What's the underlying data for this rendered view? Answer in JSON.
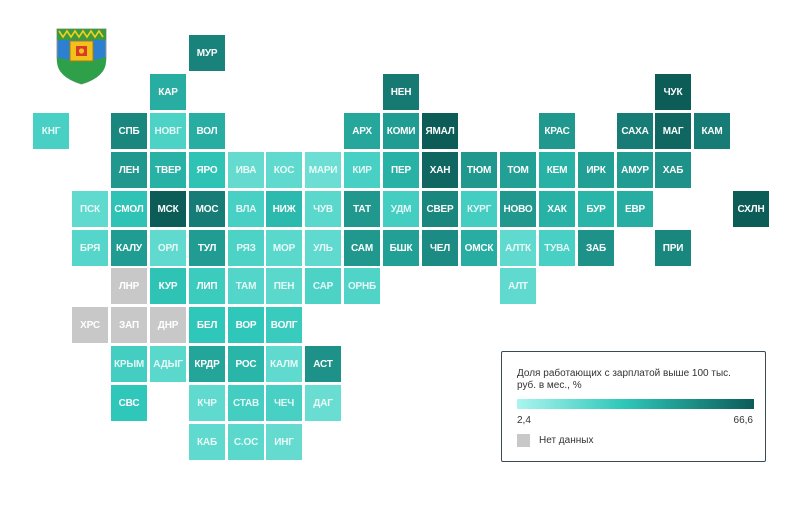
{
  "legend": {
    "title": "Доля работающих с зарплатой выше 100 тыс. руб. в мес., %",
    "min_label": "2,4",
    "max_label": "66,6",
    "no_data_label": "Нет данных",
    "min_value": 2.4,
    "max_value": 66.6
  },
  "colors": {
    "scale_low": "#aaf5ee",
    "scale_mid": "#2fc7b9",
    "scale_high": "#0c5c58",
    "no_data": "#c8c8c8",
    "legend_border": "#3a4a57"
  },
  "emblem": {
    "icon": "coat-of-arms-icon"
  },
  "regions": [
    {
      "label": "МУР",
      "col": 5,
      "row": 0,
      "level": 0.82
    },
    {
      "label": "КАР",
      "col": 4,
      "row": 1,
      "level": 0.62
    },
    {
      "label": "НЕН",
      "col": 10,
      "row": 1,
      "level": 0.86
    },
    {
      "label": "ЧУК",
      "col": 17,
      "row": 1,
      "level": 1.0
    },
    {
      "label": "КНГ",
      "col": 1,
      "row": 2,
      "level": 0.4
    },
    {
      "label": "СПБ",
      "col": 3,
      "row": 2,
      "level": 0.8
    },
    {
      "label": "НОВГ",
      "col": 4,
      "row": 2,
      "level": 0.38
    },
    {
      "label": "ВОЛ",
      "col": 5,
      "row": 2,
      "level": 0.62
    },
    {
      "label": "АРХ",
      "col": 9,
      "row": 2,
      "level": 0.65
    },
    {
      "label": "КОМИ",
      "col": 10,
      "row": 2,
      "level": 0.7
    },
    {
      "label": "ЯМАЛ",
      "col": 11,
      "row": 2,
      "level": 1.0
    },
    {
      "label": "КРАС",
      "col": 14,
      "row": 2,
      "level": 0.72
    },
    {
      "label": "САХА",
      "col": 16,
      "row": 2,
      "level": 0.85
    },
    {
      "label": "МАГ",
      "col": 17,
      "row": 2,
      "level": 0.95
    },
    {
      "label": "КАМ",
      "col": 18,
      "row": 2,
      "level": 0.85
    },
    {
      "label": "ЛЕН",
      "col": 3,
      "row": 3,
      "level": 0.72
    },
    {
      "label": "ТВЕР",
      "col": 4,
      "row": 3,
      "level": 0.6
    },
    {
      "label": "ЯРО",
      "col": 5,
      "row": 3,
      "level": 0.52
    },
    {
      "label": "ИВА",
      "col": 6,
      "row": 3,
      "level": 0.28
    },
    {
      "label": "КОС",
      "col": 7,
      "row": 3,
      "level": 0.3
    },
    {
      "label": "МАРИ",
      "col": 8,
      "row": 3,
      "level": 0.25
    },
    {
      "label": "КИР",
      "col": 9,
      "row": 3,
      "level": 0.4
    },
    {
      "label": "ПЕР",
      "col": 10,
      "row": 3,
      "level": 0.6
    },
    {
      "label": "ХАН",
      "col": 11,
      "row": 3,
      "level": 0.95
    },
    {
      "label": "ТЮМ",
      "col": 12,
      "row": 3,
      "level": 0.72
    },
    {
      "label": "ТОМ",
      "col": 13,
      "row": 3,
      "level": 0.68
    },
    {
      "label": "КЕМ",
      "col": 14,
      "row": 3,
      "level": 0.6
    },
    {
      "label": "ИРК",
      "col": 15,
      "row": 3,
      "level": 0.68
    },
    {
      "label": "АМУР",
      "col": 16,
      "row": 3,
      "level": 0.7
    },
    {
      "label": "ХАБ",
      "col": 17,
      "row": 3,
      "level": 0.75
    },
    {
      "label": "ПСК",
      "col": 2,
      "row": 4,
      "level": 0.3
    },
    {
      "label": "СМОЛ",
      "col": 3,
      "row": 4,
      "level": 0.52
    },
    {
      "label": "МСК",
      "col": 4,
      "row": 4,
      "level": 1.0
    },
    {
      "label": "МОС",
      "col": 5,
      "row": 4,
      "level": 0.85
    },
    {
      "label": "ВЛА",
      "col": 6,
      "row": 4,
      "level": 0.4
    },
    {
      "label": "НИЖ",
      "col": 7,
      "row": 4,
      "level": 0.56
    },
    {
      "label": "ЧУВ",
      "col": 8,
      "row": 4,
      "level": 0.32
    },
    {
      "label": "ТАТ",
      "col": 9,
      "row": 4,
      "level": 0.72
    },
    {
      "label": "УДМ",
      "col": 10,
      "row": 4,
      "level": 0.42
    },
    {
      "label": "СВЕР",
      "col": 11,
      "row": 4,
      "level": 0.8
    },
    {
      "label": "КУРГ",
      "col": 12,
      "row": 4,
      "level": 0.42
    },
    {
      "label": "НОВО",
      "col": 13,
      "row": 4,
      "level": 0.72
    },
    {
      "label": "ХАК",
      "col": 14,
      "row": 4,
      "level": 0.6
    },
    {
      "label": "БУР",
      "col": 15,
      "row": 4,
      "level": 0.58
    },
    {
      "label": "ЕВР",
      "col": 16,
      "row": 4,
      "level": 0.62
    },
    {
      "label": "СХЛН",
      "col": 19,
      "row": 4,
      "level": 1.0
    },
    {
      "label": "БРЯ",
      "col": 2,
      "row": 5,
      "level": 0.34
    },
    {
      "label": "КАЛУ",
      "col": 3,
      "row": 5,
      "level": 0.7
    },
    {
      "label": "ОРЛ",
      "col": 4,
      "row": 5,
      "level": 0.3
    },
    {
      "label": "ТУЛ",
      "col": 5,
      "row": 5,
      "level": 0.7
    },
    {
      "label": "РЯЗ",
      "col": 6,
      "row": 5,
      "level": 0.38
    },
    {
      "label": "МОР",
      "col": 7,
      "row": 5,
      "level": 0.32
    },
    {
      "label": "УЛЬ",
      "col": 8,
      "row": 5,
      "level": 0.3
    },
    {
      "label": "САМ",
      "col": 9,
      "row": 5,
      "level": 0.72
    },
    {
      "label": "БШК",
      "col": 10,
      "row": 5,
      "level": 0.68
    },
    {
      "label": "ЧЕЛ",
      "col": 11,
      "row": 5,
      "level": 0.78
    },
    {
      "label": "ОМСК",
      "col": 12,
      "row": 5,
      "level": 0.62
    },
    {
      "label": "АЛТК",
      "col": 13,
      "row": 5,
      "level": 0.3
    },
    {
      "label": "ТУВА",
      "col": 14,
      "row": 5,
      "level": 0.4
    },
    {
      "label": "ЗАБ",
      "col": 15,
      "row": 5,
      "level": 0.75
    },
    {
      "label": "ПРИ",
      "col": 17,
      "row": 5,
      "level": 0.8
    },
    {
      "label": "ЛНР",
      "col": 3,
      "row": 6,
      "level": null
    },
    {
      "label": "КУР",
      "col": 4,
      "row": 6,
      "level": 0.52
    },
    {
      "label": "ЛИП",
      "col": 5,
      "row": 6,
      "level": 0.45
    },
    {
      "label": "ТАМ",
      "col": 6,
      "row": 6,
      "level": 0.35
    },
    {
      "label": "ПЕН",
      "col": 7,
      "row": 6,
      "level": 0.32
    },
    {
      "label": "САР",
      "col": 8,
      "row": 6,
      "level": 0.38
    },
    {
      "label": "ОРНБ",
      "col": 9,
      "row": 6,
      "level": 0.36
    },
    {
      "label": "АЛТ",
      "col": 13,
      "row": 6,
      "level": 0.3
    },
    {
      "label": "ХРС",
      "col": 2,
      "row": 7,
      "level": null
    },
    {
      "label": "ЗАП",
      "col": 3,
      "row": 7,
      "level": null
    },
    {
      "label": "ДНР",
      "col": 4,
      "row": 7,
      "level": null
    },
    {
      "label": "БЕЛ",
      "col": 5,
      "row": 7,
      "level": 0.5
    },
    {
      "label": "ВОР",
      "col": 6,
      "row": 7,
      "level": 0.5
    },
    {
      "label": "ВОЛГ",
      "col": 7,
      "row": 7,
      "level": 0.46
    },
    {
      "label": "КРЫМ",
      "col": 3,
      "row": 8,
      "level": 0.42
    },
    {
      "label": "АДЫГ",
      "col": 4,
      "row": 8,
      "level": 0.32
    },
    {
      "label": "КРДР",
      "col": 5,
      "row": 8,
      "level": 0.66
    },
    {
      "label": "РОС",
      "col": 6,
      "row": 8,
      "level": 0.58
    },
    {
      "label": "КАЛМ",
      "col": 7,
      "row": 8,
      "level": 0.3
    },
    {
      "label": "АСТ",
      "col": 8,
      "row": 8,
      "level": 0.75
    },
    {
      "label": "СВС",
      "col": 3,
      "row": 9,
      "level": 0.5
    },
    {
      "label": "КЧР",
      "col": 5,
      "row": 9,
      "level": 0.3
    },
    {
      "label": "СТАВ",
      "col": 6,
      "row": 9,
      "level": 0.42
    },
    {
      "label": "ЧЕЧ",
      "col": 7,
      "row": 9,
      "level": 0.4
    },
    {
      "label": "ДАГ",
      "col": 8,
      "row": 9,
      "level": 0.26
    },
    {
      "label": "КАБ",
      "col": 5,
      "row": 10,
      "level": 0.3
    },
    {
      "label": "С.ОС",
      "col": 6,
      "row": 10,
      "level": 0.32
    },
    {
      "label": "ИНГ",
      "col": 7,
      "row": 10,
      "level": 0.28
    }
  ]
}
